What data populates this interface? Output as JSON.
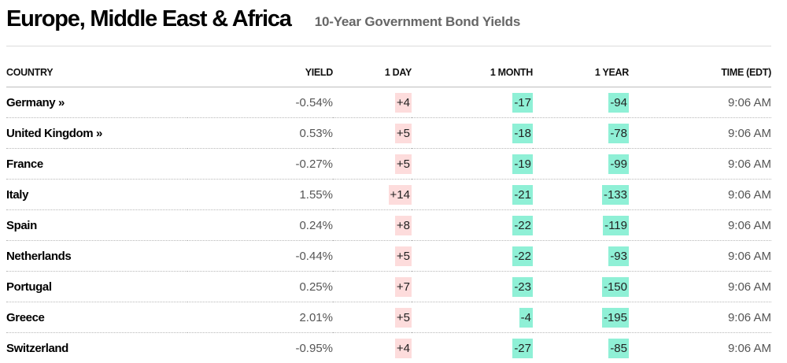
{
  "header": {
    "title": "Europe, Middle East & Africa",
    "subtitle": "10-Year Government Bond Yields"
  },
  "table": {
    "columns": [
      "COUNTRY",
      "YIELD",
      "1 DAY",
      "1 MONTH",
      "1 YEAR",
      "TIME (EDT)"
    ],
    "rows": [
      {
        "country": "Germany »",
        "yield": "-0.54%",
        "day": "+4",
        "month": "-17",
        "year": "-94",
        "time": "9:06 AM"
      },
      {
        "country": "United Kingdom »",
        "yield": "0.53%",
        "day": "+5",
        "month": "-18",
        "year": "-78",
        "time": "9:06 AM"
      },
      {
        "country": "France",
        "yield": "-0.27%",
        "day": "+5",
        "month": "-19",
        "year": "-99",
        "time": "9:06 AM"
      },
      {
        "country": "Italy",
        "yield": "1.55%",
        "day": "+14",
        "month": "-21",
        "year": "-133",
        "time": "9:06 AM"
      },
      {
        "country": "Spain",
        "yield": "0.24%",
        "day": "+8",
        "month": "-22",
        "year": "-119",
        "time": "9:06 AM"
      },
      {
        "country": "Netherlands",
        "yield": "-0.44%",
        "day": "+5",
        "month": "-22",
        "year": "-93",
        "time": "9:06 AM"
      },
      {
        "country": "Portugal",
        "yield": "0.25%",
        "day": "+7",
        "month": "-23",
        "year": "-150",
        "time": "9:06 AM"
      },
      {
        "country": "Greece",
        "yield": "2.01%",
        "day": "+5",
        "month": "-4",
        "year": "-195",
        "time": "9:06 AM"
      },
      {
        "country": "Switzerland",
        "yield": "-0.95%",
        "day": "+4",
        "month": "-27",
        "year": "-85",
        "time": "9:06 AM"
      }
    ]
  },
  "colors": {
    "positive_change_bg": "#fddcdc",
    "negative_change_bg": "#8ff0d6"
  }
}
